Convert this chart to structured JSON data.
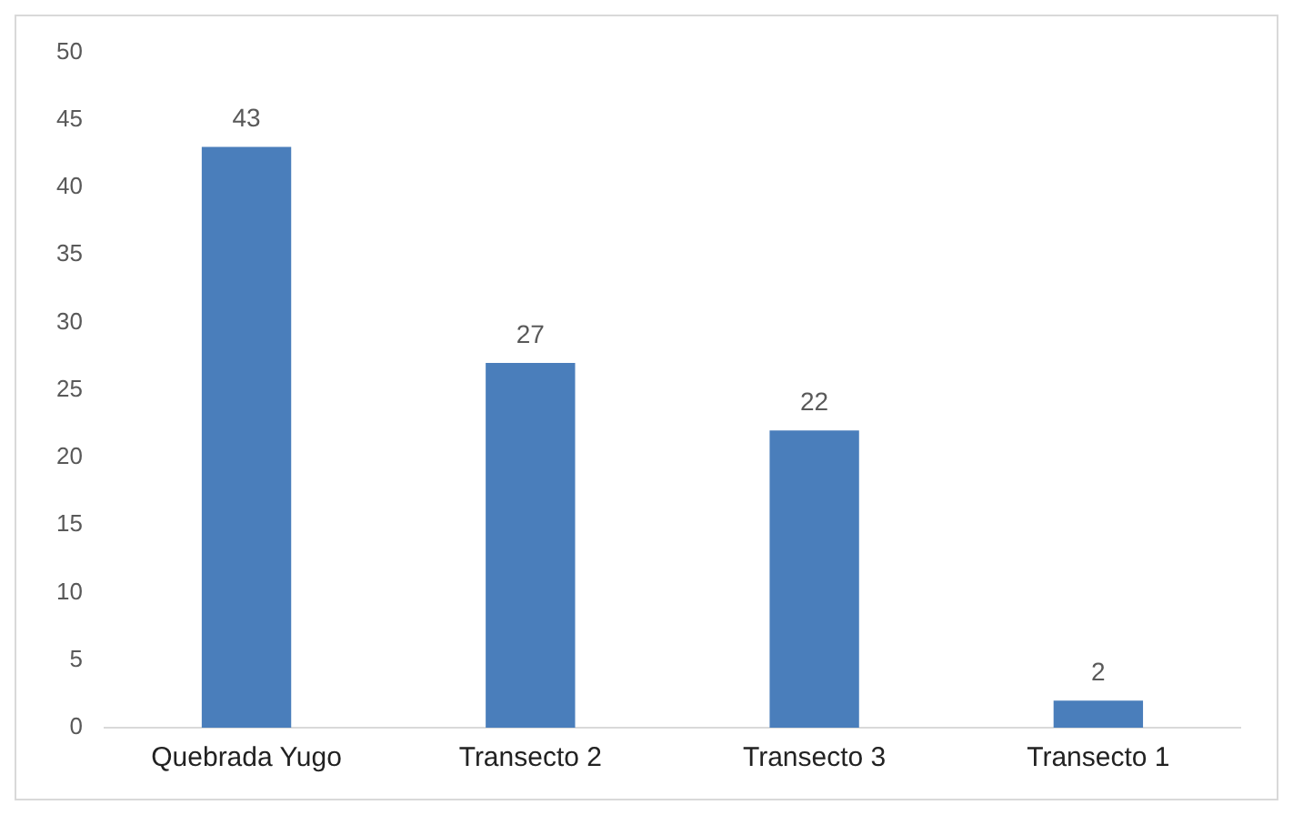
{
  "chart_data": {
    "type": "bar",
    "categories": [
      "Quebrada Yugo",
      "Transecto 2",
      "Transecto 3",
      "Transecto 1"
    ],
    "values": [
      43,
      27,
      22,
      2
    ],
    "color": "#4a7ebb",
    "ylim": [
      0,
      50
    ],
    "yticks": [
      0,
      5,
      10,
      15,
      20,
      25,
      30,
      35,
      40,
      45,
      50
    ],
    "grid": false,
    "legend": false,
    "data_labels": true
  }
}
